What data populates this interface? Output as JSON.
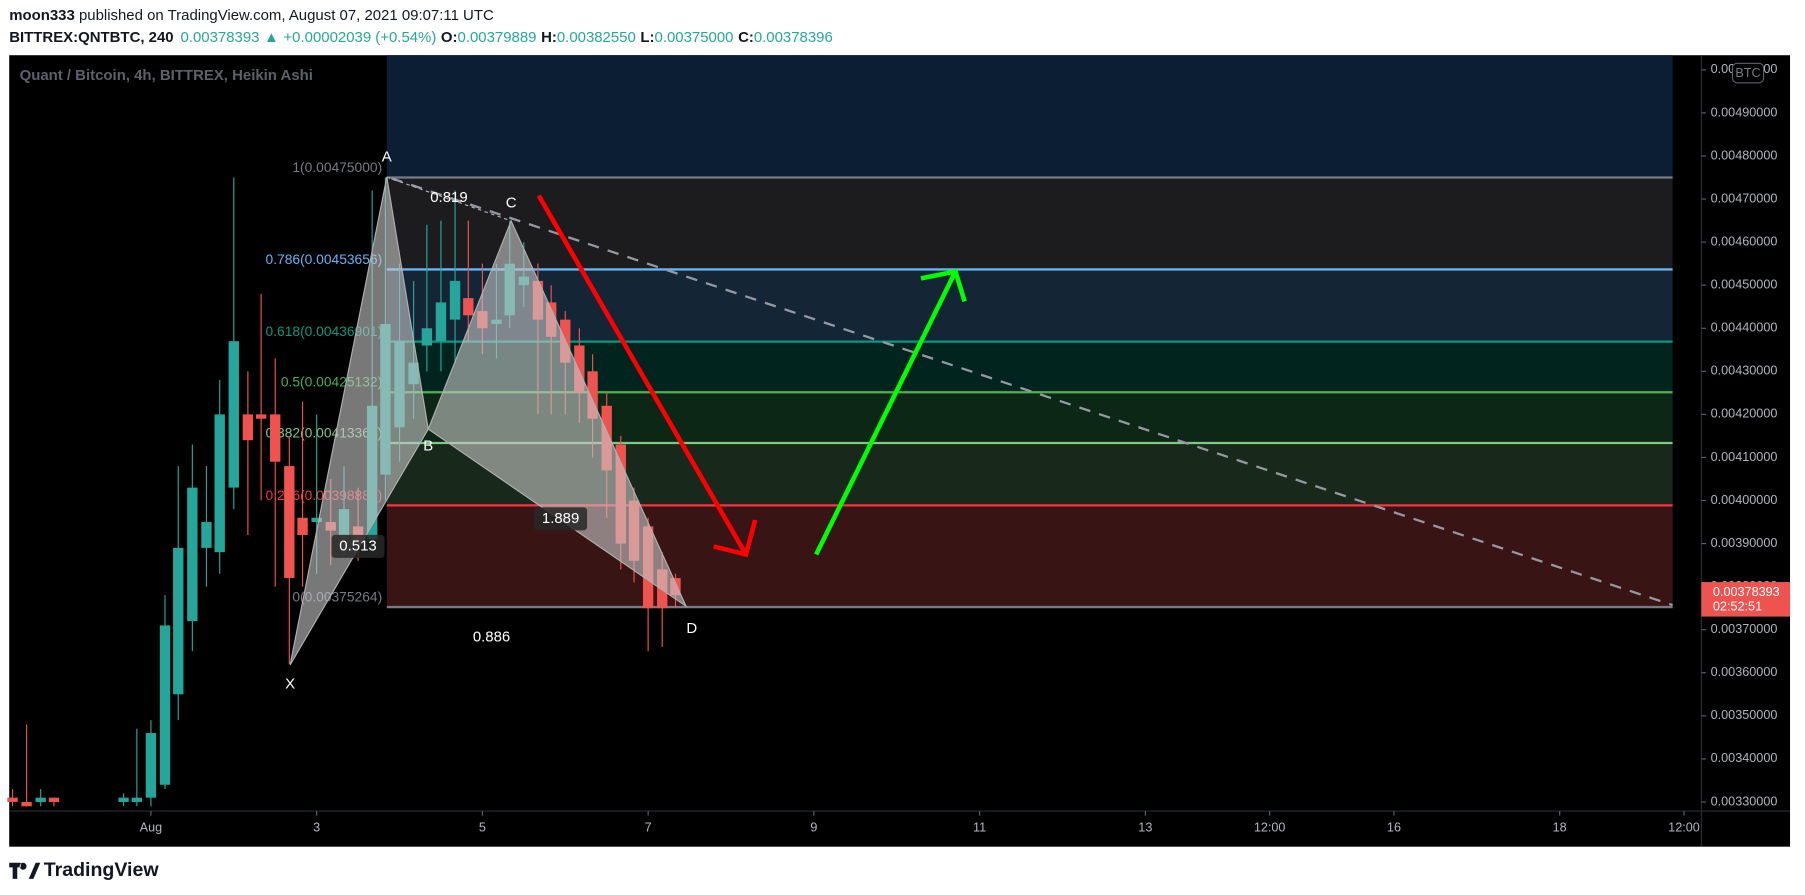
{
  "header": {
    "author": "moon333",
    "published": " published on TradingView.com, August 07, 2021 09:07:11 UTC",
    "symbol": "BITTREX:QNTBTC, 240",
    "last": "0.00378393",
    "arrow": "▲",
    "change": "+0.00002039 (+0.54%)",
    "ohlc": [
      {
        "key": "O:",
        "value": "0.00379889"
      },
      {
        "key": "H:",
        "value": "0.00382550"
      },
      {
        "key": "L:",
        "value": "0.00375000"
      },
      {
        "key": "C:",
        "value": "0.00378396"
      }
    ]
  },
  "footer": {
    "brand": "TradingView"
  },
  "chart_data": {
    "type": "candlestick",
    "title": "Quant / Bitcoin, 4h, BITTREX, Heikin Ashi",
    "currency": "BTC",
    "up_color": "#26a69a",
    "down_color": "#ef5350",
    "x": [
      -0.67,
      -0.5,
      -0.33,
      -0.17,
      0.67,
      0.83,
      1,
      1.17,
      1.33,
      1.5,
      1.67,
      1.83,
      2,
      2.17,
      2.33,
      2.5,
      2.67,
      2.83,
      3,
      3.17,
      3.33,
      3.5,
      3.67,
      3.83,
      4,
      4.17,
      4.33,
      4.5,
      4.67,
      4.83,
      5,
      5.17,
      5.33,
      5.5,
      5.67,
      5.83,
      6,
      6.17,
      6.33,
      6.5,
      6.67,
      6.83,
      7,
      7.17,
      7.33
    ],
    "open": [
      0.00331,
      0.0033,
      0.0033,
      0.00331,
      0.0033,
      0.0033,
      0.00331,
      0.00334,
      0.00355,
      0.00372,
      0.00389,
      0.00388,
      0.00403,
      0.0042,
      0.0042,
      0.0042,
      0.00408,
      0.00396,
      0.00395,
      0.00395,
      0.00392,
      0.00394,
      0.00391,
      0.00406,
      0.00417,
      0.00427,
      0.00436,
      0.00437,
      0.00442,
      0.00447,
      0.00444,
      0.00441,
      0.00443,
      0.0045,
      0.00451,
      0.00446,
      0.00442,
      0.00436,
      0.0043,
      0.00422,
      0.00413,
      0.004,
      0.00394,
      0.00384,
      0.00382
    ],
    "high": [
      0.00333,
      0.00348,
      0.00333,
      0.00331,
      0.00332,
      0.00347,
      0.00349,
      0.00378,
      0.00408,
      0.00413,
      0.00408,
      0.00428,
      0.00475,
      0.0043,
      0.00448,
      0.00433,
      0.00415,
      0.00423,
      0.0042,
      0.00405,
      0.00408,
      0.00403,
      0.00472,
      0.00475,
      0.00455,
      0.00451,
      0.00464,
      0.00465,
      0.00472,
      0.00465,
      0.00455,
      0.00455,
      0.00465,
      0.0046,
      0.00455,
      0.0045,
      0.00444,
      0.0044,
      0.00434,
      0.00425,
      0.00415,
      0.00403,
      0.00396,
      0.00388,
      0.00383
    ],
    "low": [
      0.00329,
      0.00329,
      0.00329,
      0.00329,
      0.00329,
      0.00329,
      0.00329,
      0.00333,
      0.00349,
      0.00365,
      0.0038,
      0.00383,
      0.00398,
      0.00392,
      0.004,
      0.0038,
      0.00362,
      0.0038,
      0.00383,
      0.00385,
      0.00387,
      0.00386,
      0.00388,
      0.004,
      0.00409,
      0.00419,
      0.0043,
      0.0043,
      0.00432,
      0.00437,
      0.00434,
      0.00433,
      0.0044,
      0.00445,
      0.0042,
      0.0042,
      0.0042,
      0.00418,
      0.0041,
      0.00396,
      0.00384,
      0.00381,
      0.00365,
      0.00366,
      0.00375
    ],
    "close": [
      0.0033,
      0.00329,
      0.00331,
      0.0033,
      0.00331,
      0.00331,
      0.00346,
      0.00371,
      0.00389,
      0.00403,
      0.00395,
      0.0042,
      0.00437,
      0.00414,
      0.00419,
      0.00409,
      0.00382,
      0.00392,
      0.00396,
      0.00393,
      0.00398,
      0.0039,
      0.00422,
      0.00441,
      0.00437,
      0.00432,
      0.0044,
      0.00446,
      0.00451,
      0.00443,
      0.0044,
      0.00442,
      0.00455,
      0.00452,
      0.00442,
      0.00438,
      0.00432,
      0.00425,
      0.00419,
      0.00407,
      0.0039,
      0.00386,
      0.00375,
      0.00375,
      0.00378
    ],
    "xlim": [
      -0.71,
      19.71
    ],
    "xticks": [
      {
        "value": 1,
        "label": "Aug"
      },
      3,
      5,
      7,
      9,
      11,
      13,
      {
        "value": 14.5,
        "label": "12:00"
      },
      16,
      18,
      {
        "value": 19.5,
        "label": "12:00"
      }
    ],
    "ylim": [
      0.003279,
      0.005034
    ],
    "yticks": [
      {
        "value": 0.0033,
        "label": "0.00330000"
      },
      {
        "value": 0.0034,
        "label": "0.00340000"
      },
      {
        "value": 0.0035,
        "label": "0.00350000"
      },
      {
        "value": 0.0036,
        "label": "0.00360000"
      },
      {
        "value": 0.0037,
        "label": "0.00370000"
      },
      {
        "value": 0.0038,
        "label": "0.00380000"
      },
      {
        "value": 0.0039,
        "label": "0.00390000"
      },
      {
        "value": 0.004,
        "label": "0.00400000"
      },
      {
        "value": 0.0041,
        "label": "0.00410000"
      },
      {
        "value": 0.0042,
        "label": "0.00420000"
      },
      {
        "value": 0.0043,
        "label": "0.00430000"
      },
      {
        "value": 0.0044,
        "label": "0.00440000"
      },
      {
        "value": 0.0045,
        "label": "0.00450000"
      },
      {
        "value": 0.0046,
        "label": "0.00460000"
      },
      {
        "value": 0.0047,
        "label": "0.00470000"
      },
      {
        "value": 0.0048,
        "label": "0.00480000"
      },
      {
        "value": 0.0049,
        "label": "0.00490000"
      },
      {
        "value": 0.005,
        "label": "0.00500000"
      }
    ],
    "last_price": {
      "value": 0.00378393,
      "label": "0.00378393"
    },
    "countdown": "02:52:51",
    "last_color": "#ef5350",
    "fib_levels": [
      {
        "value": 0.00475,
        "label": "1(0.00475000)",
        "color": "#787b86",
        "fill": "#1c1c1f"
      },
      {
        "value": 0.00453656,
        "label": "0.786(0.00453656)",
        "color": "#64b5f6",
        "fill": "#142536"
      },
      {
        "value": 0.00436901,
        "label": "0.618(0.00436901)",
        "color": "#089981",
        "fill": "#02241f"
      },
      {
        "value": 0.00425132,
        "label": "0.5(0.00425132)",
        "color": "#4caf50",
        "fill": "#0c2716"
      },
      {
        "value": 0.00413363,
        "label": "0.382(0.00413363)",
        "color": "#81c784",
        "fill": "#18281a"
      },
      {
        "value": 0.0039888,
        "label": "0.236(0.00398880)",
        "color": "#f23645",
        "fill": "#381414"
      },
      {
        "value": 0.00375264,
        "label": "0(0.00375264)",
        "color": "#787b86",
        "fill": "#000000"
      }
    ],
    "pattern": {
      "points": [
        "X",
        "A",
        "B",
        "C",
        "D"
      ],
      "ratios": [
        0.819,
        0.513,
        1.889,
        0.886
      ]
    }
  }
}
